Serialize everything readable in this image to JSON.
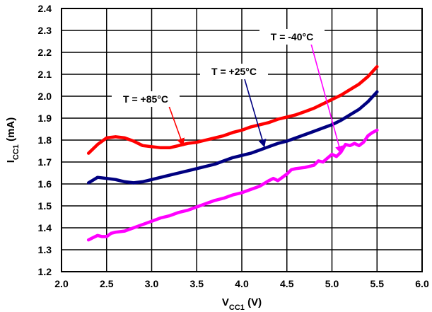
{
  "chart_data": {
    "type": "line",
    "xlabel": {
      "main": "V",
      "sub": "CC1",
      "tail": " (V)"
    },
    "ylabel": {
      "main": "I",
      "sub": "CC1",
      "tail": " (mA)"
    },
    "xlim": [
      2.0,
      6.0
    ],
    "ylim": [
      1.2,
      2.4
    ],
    "x_ticks": [
      "2.0",
      "2.5",
      "3.0",
      "3.5",
      "4.0",
      "4.5",
      "5.0",
      "5.5",
      "6.0"
    ],
    "y_ticks": [
      "1.2",
      "1.3",
      "1.4",
      "1.5",
      "1.6",
      "1.7",
      "1.8",
      "1.9",
      "2.0",
      "2.1",
      "2.2",
      "2.3",
      "2.4"
    ],
    "grid": true,
    "series": [
      {
        "name": "T = +85°C",
        "color": "#ff0000",
        "x": [
          2.3,
          2.4,
          2.5,
          2.6,
          2.7,
          2.8,
          2.9,
          3.0,
          3.1,
          3.2,
          3.3,
          3.4,
          3.5,
          3.6,
          3.7,
          3.8,
          3.9,
          4.0,
          4.1,
          4.2,
          4.3,
          4.4,
          4.5,
          4.6,
          4.7,
          4.8,
          4.9,
          5.0,
          5.1,
          5.2,
          5.3,
          5.4,
          5.5
        ],
        "values": [
          1.74,
          1.78,
          1.81,
          1.815,
          1.81,
          1.795,
          1.775,
          1.77,
          1.765,
          1.765,
          1.775,
          1.785,
          1.79,
          1.8,
          1.81,
          1.82,
          1.835,
          1.845,
          1.86,
          1.87,
          1.88,
          1.895,
          1.905,
          1.915,
          1.93,
          1.945,
          1.965,
          1.985,
          2.005,
          2.03,
          2.055,
          2.09,
          2.135
        ]
      },
      {
        "name": "T = +25°C",
        "color": "#000080",
        "x": [
          2.3,
          2.4,
          2.5,
          2.6,
          2.7,
          2.8,
          2.9,
          3.0,
          3.1,
          3.2,
          3.3,
          3.4,
          3.5,
          3.6,
          3.7,
          3.8,
          3.9,
          4.0,
          4.1,
          4.2,
          4.3,
          4.4,
          4.5,
          4.6,
          4.7,
          4.8,
          4.9,
          5.0,
          5.1,
          5.2,
          5.3,
          5.4,
          5.5
        ],
        "values": [
          1.605,
          1.63,
          1.625,
          1.62,
          1.61,
          1.605,
          1.61,
          1.62,
          1.63,
          1.64,
          1.65,
          1.66,
          1.67,
          1.68,
          1.69,
          1.705,
          1.72,
          1.73,
          1.74,
          1.755,
          1.77,
          1.785,
          1.795,
          1.81,
          1.825,
          1.84,
          1.855,
          1.87,
          1.89,
          1.915,
          1.94,
          1.975,
          2.02
        ]
      },
      {
        "name": "T = -40°C",
        "color": "#ff00ff",
        "x": [
          2.3,
          2.35,
          2.4,
          2.45,
          2.5,
          2.55,
          2.6,
          2.7,
          2.8,
          2.9,
          3.0,
          3.1,
          3.2,
          3.3,
          3.4,
          3.5,
          3.6,
          3.7,
          3.8,
          3.9,
          4.0,
          4.1,
          4.2,
          4.3,
          4.35,
          4.4,
          4.5,
          4.55,
          4.6,
          4.7,
          4.8,
          4.85,
          4.9,
          5.0,
          5.05,
          5.1,
          5.15,
          5.2,
          5.25,
          5.3,
          5.35,
          5.4,
          5.45,
          5.5
        ],
        "values": [
          1.345,
          1.355,
          1.365,
          1.36,
          1.36,
          1.375,
          1.38,
          1.385,
          1.4,
          1.415,
          1.43,
          1.445,
          1.455,
          1.47,
          1.48,
          1.495,
          1.51,
          1.525,
          1.535,
          1.55,
          1.56,
          1.575,
          1.59,
          1.615,
          1.625,
          1.615,
          1.645,
          1.665,
          1.67,
          1.675,
          1.685,
          1.705,
          1.7,
          1.735,
          1.725,
          1.745,
          1.78,
          1.775,
          1.785,
          1.775,
          1.79,
          1.82,
          1.835,
          1.845
        ]
      }
    ],
    "annotations": [
      {
        "text": "T = +85°C",
        "series": 0,
        "arrow_to": [
          3.35,
          1.775
        ]
      },
      {
        "text": "T = +25°C",
        "series": 1,
        "arrow_to": [
          4.25,
          1.77
        ]
      },
      {
        "text": "T = -40°C",
        "series": 2,
        "arrow_to": [
          5.1,
          1.74
        ]
      }
    ]
  }
}
